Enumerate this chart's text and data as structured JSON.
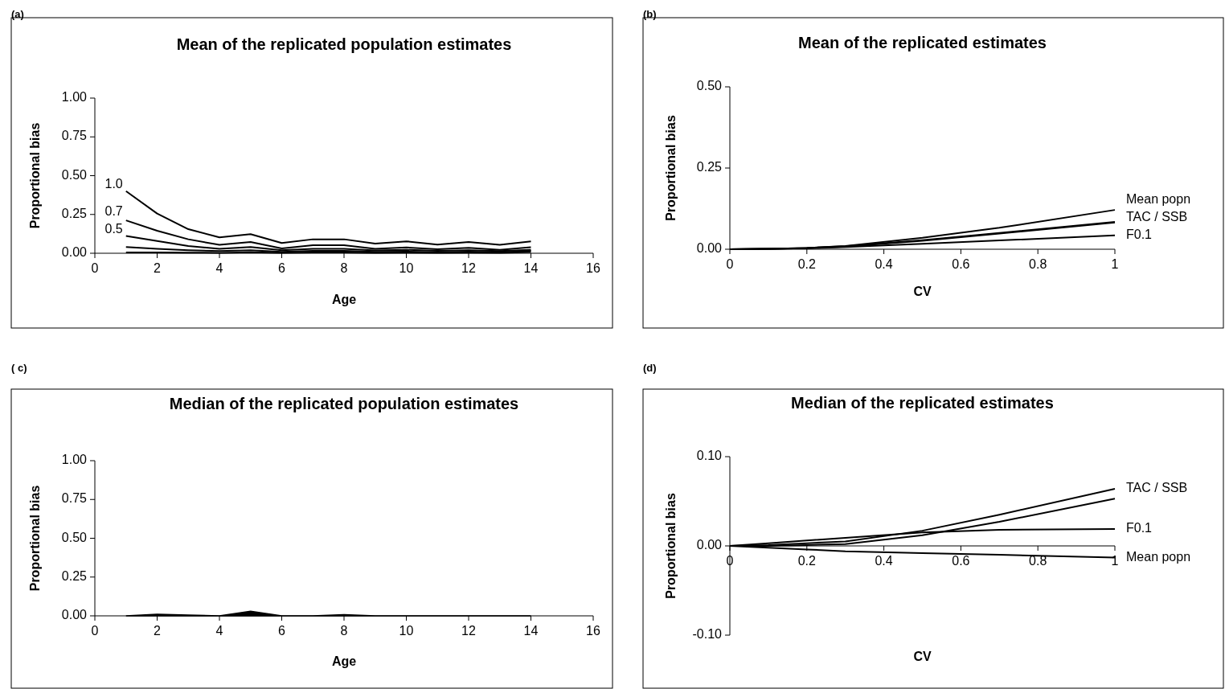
{
  "chart_data": [
    {
      "type": "line",
      "title": "Mean of the replicated population estimates",
      "xlabel": "Age",
      "ylabel": "Proportional bias",
      "annotations": [
        "(a)"
      ],
      "x": [
        1,
        2,
        3,
        4,
        5,
        6,
        7,
        8,
        9,
        10,
        11,
        12,
        13,
        14
      ],
      "xlim": [
        0,
        16
      ],
      "xticks": [
        0,
        2,
        4,
        6,
        8,
        10,
        12,
        14,
        16
      ],
      "ylim": [
        0,
        1
      ],
      "yticks": [
        {
          "value": 0,
          "label": "0.00"
        },
        {
          "value": 0.25,
          "label": "0.25"
        },
        {
          "value": 0.5,
          "label": "0.50"
        },
        {
          "value": 0.75,
          "label": "0.75"
        },
        {
          "value": 1,
          "label": "1.00"
        }
      ],
      "grid": false,
      "series": [
        {
          "name": "1.0",
          "color": "#000000",
          "values": [
            0.4,
            0.256,
            0.155,
            0.102,
            0.123,
            0.066,
            0.09,
            0.09,
            0.062,
            0.077,
            0.056,
            0.073,
            0.054,
            0.077
          ]
        },
        {
          "name": "0.7",
          "color": "#000000",
          "values": [
            0.212,
            0.145,
            0.09,
            0.054,
            0.073,
            0.031,
            0.052,
            0.052,
            0.028,
            0.037,
            0.026,
            0.035,
            0.022,
            0.039
          ]
        },
        {
          "name": "0.5",
          "color": "#000000",
          "values": [
            0.111,
            0.079,
            0.047,
            0.028,
            0.04,
            0.02,
            0.028,
            0.028,
            0.018,
            0.022,
            0.016,
            0.02,
            0.014,
            0.022
          ]
        },
        {
          "color": "#000000",
          "values": [
            0.04,
            0.028,
            0.02,
            0.014,
            0.02,
            0.009,
            0.015,
            0.015,
            0.009,
            0.011,
            0.007,
            0.011,
            0.007,
            0.015
          ]
        },
        {
          "color": "#000000",
          "values": [
            0.005,
            0.005,
            0.004,
            0.003,
            0.006,
            0.002,
            0.005,
            0.005,
            0.003,
            0.004,
            0.003,
            0.004,
            0.003,
            0.008
          ]
        }
      ]
    },
    {
      "type": "line",
      "title": "Mean of the replicated estimates",
      "xlabel": "CV",
      "ylabel": "Proportional bias",
      "annotations": [
        "(b)"
      ],
      "x": [
        0,
        0.1,
        0.2,
        0.3,
        0.5,
        0.7,
        1
      ],
      "xlim": [
        0,
        1
      ],
      "xticks": [
        0,
        0.2,
        0.4,
        0.6,
        0.8,
        1
      ],
      "ylim": [
        0,
        0.5
      ],
      "yticks": [
        {
          "value": 0,
          "label": "0.00"
        },
        {
          "value": 0.25,
          "label": "0.25"
        },
        {
          "value": 0.5,
          "label": "0.50"
        }
      ],
      "grid": false,
      "series": [
        {
          "name": "Mean popn",
          "color": "#000000",
          "values": [
            0,
            0.001,
            0.004,
            0.01,
            0.035,
            0.066,
            0.121
          ]
        },
        {
          "name": "TAC / SSB",
          "color": "#000000",
          "values": [
            0,
            0.001,
            0.004,
            0.009,
            0.028,
            0.05,
            0.084
          ]
        },
        {
          "color": "#000000",
          "values": [
            0,
            0.001,
            0.003,
            0.008,
            0.026,
            0.048,
            0.082
          ]
        },
        {
          "name": "F0.1",
          "color": "#000000",
          "values": [
            0,
            0.001,
            0.003,
            0.007,
            0.017,
            0.027,
            0.043
          ]
        }
      ]
    },
    {
      "type": "area",
      "title": "Median of the replicated population estimates",
      "xlabel": "Age",
      "ylabel": "Proportional bias",
      "annotations": [
        "( c)"
      ],
      "x": [
        1,
        2,
        3,
        4,
        5,
        6,
        7,
        8,
        9,
        10,
        11,
        12,
        13,
        14
      ],
      "xlim": [
        0,
        16
      ],
      "xticks": [
        0,
        2,
        4,
        6,
        8,
        10,
        12,
        14,
        16
      ],
      "ylim": [
        0,
        1
      ],
      "yticks": [
        {
          "value": 0,
          "label": "0.00"
        },
        {
          "value": 0.25,
          "label": "0.25"
        },
        {
          "value": 0.5,
          "label": "0.50"
        },
        {
          "value": 0.75,
          "label": "0.75"
        },
        {
          "value": 1,
          "label": "1.00"
        }
      ],
      "grid": false,
      "series": [
        {
          "color": "#000000",
          "values": [
            0,
            0.01,
            0.005,
            0,
            0.03,
            0,
            0,
            0.008,
            0,
            0,
            0,
            0,
            0,
            0
          ]
        }
      ]
    },
    {
      "type": "line",
      "title": "Median of the replicated estimates",
      "xlabel": "CV",
      "ylabel": "Proportional bias",
      "annotations": [
        "(d)"
      ],
      "x": [
        0,
        0.1,
        0.2,
        0.3,
        0.5,
        0.7,
        1
      ],
      "xlim": [
        0,
        1
      ],
      "xticks": [
        0,
        0.2,
        0.4,
        0.6,
        0.8,
        1
      ],
      "ylim": [
        -0.1,
        0.1
      ],
      "yticks": [
        {
          "value": -0.1,
          "label": "-0.10"
        },
        {
          "value": 0,
          "label": "0.00"
        },
        {
          "value": 0.1,
          "label": "0.10"
        }
      ],
      "grid": false,
      "series": [
        {
          "name": "TAC / SSB",
          "color": "#000000",
          "values": [
            0,
            0.001,
            0.003,
            0.005,
            0.017,
            0.035,
            0.064
          ]
        },
        {
          "color": "#000000",
          "values": [
            0,
            0,
            0.001,
            0.002,
            0.012,
            0.027,
            0.053
          ]
        },
        {
          "name": "F0.1",
          "color": "#000000",
          "values": [
            0,
            0.003,
            0.006,
            0.009,
            0.015,
            0.018,
            0.019
          ]
        },
        {
          "name": "Mean popn",
          "color": "#000000",
          "values": [
            0,
            -0.002,
            -0.004,
            -0.006,
            -0.008,
            -0.01,
            -0.013
          ]
        }
      ]
    }
  ]
}
